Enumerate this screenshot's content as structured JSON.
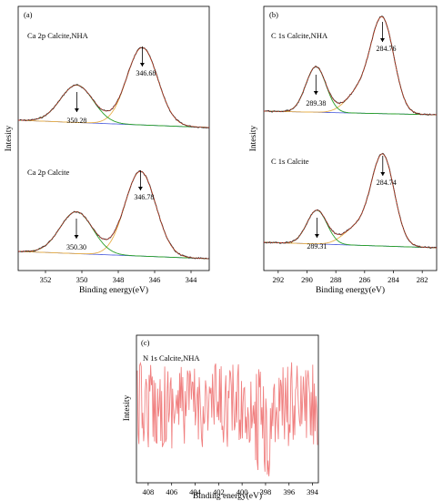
{
  "chart_data": [
    {
      "type": "line",
      "panel": "(a)",
      "xlabel": "Binding energy(eV)",
      "ylabel": "Intesity",
      "xlim": [
        353.5,
        343.0
      ],
      "xticks": [
        352,
        350,
        348,
        346,
        344
      ],
      "tick_labels": [
        "352",
        "350",
        "348",
        "346",
        "344"
      ],
      "colors": {
        "envelope": "#c0392b",
        "fit1": "#2aa02a",
        "fit2": "#e8b04a",
        "baseline": "#5b6be0",
        "raw": "#333333"
      },
      "spectra": [
        {
          "title": "Ca 2p Calcite,NHA",
          "peaks": [
            {
              "position": 350.28,
              "label": "350.28"
            },
            {
              "position": 346.68,
              "label": "346.68"
            }
          ]
        },
        {
          "title": "Ca 2p Calcite",
          "peaks": [
            {
              "position": 350.3,
              "label": "350.30"
            },
            {
              "position": 346.78,
              "label": "346.78"
            }
          ]
        }
      ]
    },
    {
      "type": "line",
      "panel": "(b)",
      "xlabel": "Binding energy(eV)",
      "ylabel": "Intesity",
      "xlim": [
        293.0,
        281.0
      ],
      "xticks": [
        292,
        290,
        288,
        286,
        284,
        282
      ],
      "tick_labels": [
        "292",
        "290",
        "288",
        "286",
        "284",
        "282"
      ],
      "colors": {
        "envelope": "#c0392b",
        "fit1": "#2aa02a",
        "fit2": "#e8b04a",
        "baseline": "#5b6be0",
        "raw": "#333333"
      },
      "spectra": [
        {
          "title": "C 1s Calcite,NHA",
          "peaks": [
            {
              "position": 289.38,
              "label": "289.38"
            },
            {
              "position": 284.76,
              "label": "284.76"
            }
          ]
        },
        {
          "title": "C 1s Calcite",
          "peaks": [
            {
              "position": 289.31,
              "label": "289.31"
            },
            {
              "position": 284.74,
              "label": "284.74"
            }
          ]
        }
      ]
    },
    {
      "type": "line",
      "panel": "(c)",
      "title": "N 1s Calcite,NHA",
      "xlabel": "Binding energy(eV)",
      "ylabel": "Intesity",
      "xlim": [
        409.0,
        393.5
      ],
      "xticks": [
        408,
        406,
        404,
        402,
        400,
        398,
        396,
        394
      ],
      "tick_labels": [
        "408",
        "406",
        "404",
        "402",
        "400",
        "398",
        "396",
        "394"
      ],
      "colors": {
        "noise": "#f08080"
      }
    }
  ]
}
